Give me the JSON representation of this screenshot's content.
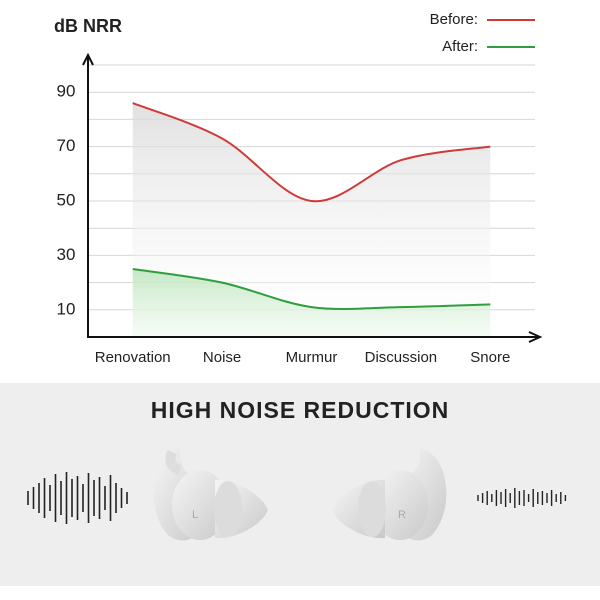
{
  "chart_data": {
    "type": "line",
    "y_label": "dB NRR",
    "categories": [
      "Renovation",
      "Noise",
      "Murmur",
      "Discussion",
      "Snore"
    ],
    "series": [
      {
        "name": "Before:",
        "color": "#d03a3a",
        "values": [
          86,
          73,
          50,
          65,
          70
        ]
      },
      {
        "name": "After:",
        "color": "#2e9e3e",
        "values": [
          25,
          20,
          11,
          11,
          12
        ]
      }
    ],
    "ylim": [
      0,
      100
    ],
    "yticks": [
      10,
      30,
      50,
      70,
      90
    ],
    "ygrid": [
      10,
      20,
      30,
      40,
      50,
      60,
      70,
      80,
      90,
      100
    ],
    "grid": true,
    "legend": "upper right"
  },
  "banner": {
    "title": "HIGH NOISE REDUCTION",
    "left_label": "L",
    "right_label": "R"
  }
}
